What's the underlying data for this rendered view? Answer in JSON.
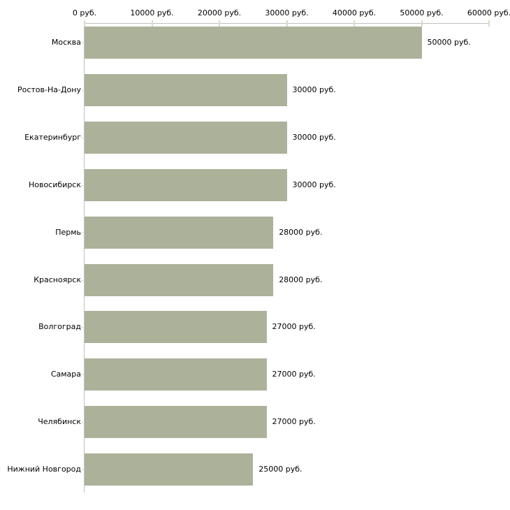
{
  "chart": {
    "background_color": "#ffffff"
  },
  "chart_data": {
    "type": "bar",
    "orientation": "horizontal",
    "title": "",
    "xlabel": "",
    "ylabel": "",
    "unit": "руб.",
    "categories": [
      "Москва",
      "Ростов-На-Дону",
      "Екатеринбург",
      "Новосибирск",
      "Пермь",
      "Красноярск",
      "Волгоград",
      "Самара",
      "Челябинск",
      "Нижний Новгород"
    ],
    "values": [
      50000,
      30000,
      30000,
      30000,
      28000,
      28000,
      27000,
      27000,
      27000,
      25000
    ],
    "value_labels": [
      "50000 руб.",
      "30000 руб.",
      "30000 руб.",
      "30000 руб.",
      "28000 руб.",
      "28000 руб.",
      "27000 руб.",
      "27000 руб.",
      "27000 руб.",
      "25000 руб."
    ],
    "x_tick_values": [
      0,
      10000,
      20000,
      30000,
      40000,
      50000,
      60000
    ],
    "x_tick_labels": [
      "0 руб.",
      "10000 руб.",
      "20000 руб.",
      "30000 руб.",
      "40000 руб.",
      "50000 руб.",
      "60000 руб."
    ],
    "xlim": [
      0,
      60000
    ],
    "grid": false,
    "legend": null,
    "bar_color": "#acb29a",
    "axis_color": "#c0c0c0",
    "tick_color": "#d9dcc2",
    "text_color": "#000000"
  }
}
